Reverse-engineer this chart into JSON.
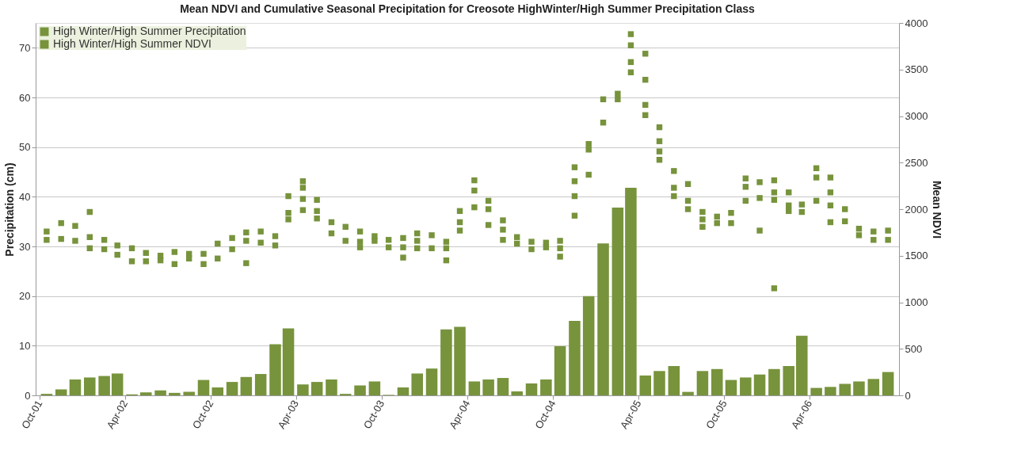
{
  "chart_data": {
    "type": "bar",
    "title": "Mean NDVI and Cumulative Seasonal Precipitation for Creosote HighWinter/High Summer Precipitation Class",
    "ylabel": "Precipitation (cm)",
    "y2label": "Mean NDVI",
    "xlim": [
      "2001-10-01",
      "2006-10-01"
    ],
    "xticks": [
      {
        "value": "2001-10-01",
        "label": "Oct-01"
      },
      {
        "value": "2002-04-01",
        "label": "Apr-02"
      },
      {
        "value": "2002-10-01",
        "label": "Oct-02"
      },
      {
        "value": "2003-04-01",
        "label": "Apr-03"
      },
      {
        "value": "2003-10-01",
        "label": "Oct-03"
      },
      {
        "value": "2004-04-01",
        "label": "Apr-04"
      },
      {
        "value": "2004-10-01",
        "label": "Oct-04"
      },
      {
        "value": "2005-04-01",
        "label": "Apr-05"
      },
      {
        "value": "2005-10-01",
        "label": "Oct-05"
      },
      {
        "value": "2006-04-01",
        "label": "Apr-06"
      }
    ],
    "ylim": [
      0,
      75
    ],
    "yticks": [
      0,
      10,
      20,
      30,
      40,
      50,
      60,
      70
    ],
    "y2lim": [
      0,
      4000
    ],
    "y2ticks": [
      0,
      500,
      1000,
      1500,
      2000,
      2500,
      3000,
      3500,
      4000
    ],
    "grid": "y",
    "legend": "top left",
    "marker": "square",
    "series": [
      {
        "name": "High Winter/High Summer Precipitation",
        "color": "#77933c",
        "x": [
          "2001-10-16",
          "2001-11-16",
          "2001-12-16",
          "2002-01-16",
          "2002-02-16",
          "2002-03-16",
          "2002-04-16",
          "2002-05-16",
          "2002-06-16",
          "2002-07-16",
          "2002-08-16",
          "2002-09-16",
          "2002-10-16",
          "2002-11-16",
          "2002-12-16",
          "2003-01-16",
          "2003-02-16",
          "2003-03-16",
          "2003-04-16",
          "2003-05-16",
          "2003-06-16",
          "2003-07-16",
          "2003-08-16",
          "2003-09-16",
          "2003-10-16",
          "2003-11-16",
          "2003-12-16",
          "2004-01-16",
          "2004-02-16",
          "2004-03-16",
          "2004-04-16",
          "2004-05-16",
          "2004-06-16",
          "2004-07-16",
          "2004-08-16",
          "2004-09-16",
          "2004-10-16",
          "2004-11-16",
          "2004-12-16",
          "2005-01-16",
          "2005-02-16",
          "2005-03-16",
          "2005-04-16",
          "2005-05-16",
          "2005-06-16",
          "2005-07-16",
          "2005-08-16",
          "2005-09-16",
          "2005-10-16",
          "2005-11-16",
          "2005-12-16",
          "2006-01-16",
          "2006-02-16",
          "2006-03-16",
          "2006-04-16",
          "2006-05-16",
          "2006-06-16",
          "2006-07-16",
          "2006-08-16",
          "2006-09-16"
        ],
        "values": [
          0.3,
          1.2,
          3.2,
          3.6,
          3.9,
          4.4,
          0.2,
          0.6,
          1.0,
          0.5,
          0.7,
          3.1,
          1.6,
          2.7,
          3.7,
          4.3,
          10.3,
          13.5,
          2.2,
          2.7,
          3.2,
          0.3,
          2.0,
          2.8,
          0.1,
          1.6,
          4.4,
          5.4,
          13.3,
          13.8,
          2.8,
          3.2,
          3.5,
          0.8,
          2.4,
          3.2,
          9.9,
          15.0,
          20.0,
          30.6,
          37.8,
          41.8,
          4.0,
          4.9,
          5.9,
          0.7,
          4.9,
          5.3,
          3.1,
          3.6,
          4.2,
          5.3,
          5.9,
          12.0,
          1.5,
          1.7,
          2.3,
          2.8,
          3.3,
          4.7
        ]
      },
      {
        "name": "High Winter/High Summer NDVI",
        "type": "scatter",
        "axis": "y2",
        "color": "#77933c",
        "x": [
          "2001-10-16",
          "2001-10-16",
          "2001-11-16",
          "2001-11-16",
          "2001-12-16",
          "2001-12-16",
          "2002-01-16",
          "2002-01-16",
          "2002-01-16",
          "2002-02-16",
          "2002-02-16",
          "2002-03-16",
          "2002-03-16",
          "2002-04-16",
          "2002-04-16",
          "2002-05-16",
          "2002-05-16",
          "2002-06-16",
          "2002-06-16",
          "2002-07-16",
          "2002-07-16",
          "2002-08-16",
          "2002-08-16",
          "2002-09-16",
          "2002-09-16",
          "2002-10-16",
          "2002-10-16",
          "2002-11-16",
          "2002-11-16",
          "2002-12-16",
          "2002-12-16",
          "2002-12-16",
          "2003-01-16",
          "2003-01-16",
          "2003-02-16",
          "2003-02-16",
          "2003-03-16",
          "2003-03-16",
          "2003-03-16",
          "2003-04-16",
          "2003-04-16",
          "2003-04-16",
          "2003-04-16",
          "2003-05-16",
          "2003-05-16",
          "2003-05-16",
          "2003-06-16",
          "2003-06-16",
          "2003-07-16",
          "2003-07-16",
          "2003-08-16",
          "2003-08-16",
          "2003-08-16",
          "2003-09-16",
          "2003-09-16",
          "2003-10-16",
          "2003-10-16",
          "2003-11-16",
          "2003-11-16",
          "2003-11-16",
          "2003-12-16",
          "2003-12-16",
          "2003-12-16",
          "2004-01-16",
          "2004-01-16",
          "2004-02-16",
          "2004-02-16",
          "2004-02-16",
          "2004-03-16",
          "2004-03-16",
          "2004-03-16",
          "2004-04-16",
          "2004-04-16",
          "2004-04-16",
          "2004-05-16",
          "2004-05-16",
          "2004-05-16",
          "2004-06-16",
          "2004-06-16",
          "2004-06-16",
          "2004-07-16",
          "2004-07-16",
          "2004-08-16",
          "2004-08-16",
          "2004-09-16",
          "2004-09-16",
          "2004-10-16",
          "2004-10-16",
          "2004-10-16",
          "2004-11-16",
          "2004-11-16",
          "2004-11-16",
          "2004-11-16",
          "2004-12-16",
          "2004-12-16",
          "2004-12-16",
          "2005-01-16",
          "2005-01-16",
          "2005-02-16",
          "2005-02-16",
          "2005-03-16",
          "2005-03-16",
          "2005-03-16",
          "2005-03-16",
          "2005-04-16",
          "2005-04-16",
          "2005-04-16",
          "2005-04-16",
          "2005-05-16",
          "2005-05-16",
          "2005-05-16",
          "2005-05-16",
          "2005-06-16",
          "2005-06-16",
          "2005-06-16",
          "2005-07-16",
          "2005-07-16",
          "2005-07-16",
          "2005-08-16",
          "2005-08-16",
          "2005-08-16",
          "2005-09-16",
          "2005-09-16",
          "2005-10-16",
          "2005-10-16",
          "2005-11-16",
          "2005-11-16",
          "2005-11-16",
          "2005-12-16",
          "2005-12-16",
          "2005-12-16",
          "2006-01-16",
          "2006-01-16",
          "2006-01-16",
          "2006-01-16",
          "2006-02-16",
          "2006-02-16",
          "2006-02-16",
          "2006-03-16",
          "2006-03-16",
          "2006-04-16",
          "2006-04-16",
          "2006-04-16",
          "2006-05-16",
          "2006-05-16",
          "2006-05-16",
          "2006-05-16",
          "2006-06-16",
          "2006-06-16",
          "2006-07-16",
          "2006-07-16",
          "2006-08-16",
          "2006-08-16",
          "2006-09-16",
          "2006-09-16"
        ],
        "values": [
          1760,
          1670,
          1850,
          1680,
          1820,
          1660,
          1970,
          1700,
          1580,
          1670,
          1570,
          1610,
          1510,
          1580,
          1440,
          1530,
          1440,
          1500,
          1450,
          1540,
          1410,
          1520,
          1470,
          1520,
          1410,
          1630,
          1470,
          1690,
          1570,
          1750,
          1660,
          1420,
          1760,
          1640,
          1710,
          1610,
          2140,
          1960,
          1890,
          2300,
          2230,
          2110,
          1990,
          2100,
          1980,
          1900,
          1860,
          1740,
          1810,
          1660,
          1760,
          1650,
          1590,
          1710,
          1660,
          1670,
          1590,
          1690,
          1590,
          1480,
          1740,
          1660,
          1580,
          1720,
          1580,
          1650,
          1580,
          1450,
          1980,
          1860,
          1770,
          2310,
          2200,
          2020,
          2090,
          2000,
          1830,
          1880,
          1780,
          1670,
          1700,
          1630,
          1650,
          1570,
          1640,
          1590,
          1660,
          1580,
          1490,
          2450,
          2300,
          2140,
          1930,
          2700,
          2640,
          2370,
          3180,
          2930,
          3240,
          3180,
          3880,
          3760,
          3580,
          3470,
          3670,
          3390,
          3120,
          3010,
          2880,
          2730,
          2620,
          2530,
          2410,
          2230,
          2140,
          2270,
          2090,
          2000,
          1970,
          1890,
          1810,
          1920,
          1850,
          1960,
          1850,
          2330,
          2240,
          2090,
          2290,
          2120,
          1770,
          2310,
          2180,
          2100,
          1150,
          2180,
          2040,
          1980,
          2050,
          1970,
          2440,
          2340,
          2090,
          2340,
          2180,
          2040,
          1860,
          2000,
          1870,
          1790,
          1720,
          1760,
          1670,
          1770,
          1670
        ]
      }
    ]
  }
}
